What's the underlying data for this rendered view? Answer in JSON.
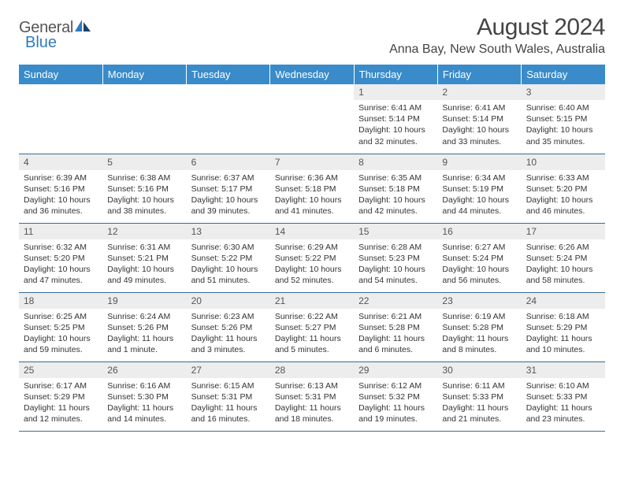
{
  "colors": {
    "header_bg": "#3a8bc9",
    "header_text": "#ffffff",
    "daynum_bg": "#ededed",
    "border": "#3a6c94",
    "logo_blue": "#2d7bc1",
    "text": "#333333"
  },
  "logo": {
    "line1a": "General",
    "line2": "Blue"
  },
  "title": "August 2024",
  "location": "Anna Bay, New South Wales, Australia",
  "day_headers": [
    "Sunday",
    "Monday",
    "Tuesday",
    "Wednesday",
    "Thursday",
    "Friday",
    "Saturday"
  ],
  "weeks": [
    [
      {
        "n": "",
        "sr": "",
        "ss": "",
        "dl": ""
      },
      {
        "n": "",
        "sr": "",
        "ss": "",
        "dl": ""
      },
      {
        "n": "",
        "sr": "",
        "ss": "",
        "dl": ""
      },
      {
        "n": "",
        "sr": "",
        "ss": "",
        "dl": ""
      },
      {
        "n": "1",
        "sr": "Sunrise: 6:41 AM",
        "ss": "Sunset: 5:14 PM",
        "dl": "Daylight: 10 hours and 32 minutes."
      },
      {
        "n": "2",
        "sr": "Sunrise: 6:41 AM",
        "ss": "Sunset: 5:14 PM",
        "dl": "Daylight: 10 hours and 33 minutes."
      },
      {
        "n": "3",
        "sr": "Sunrise: 6:40 AM",
        "ss": "Sunset: 5:15 PM",
        "dl": "Daylight: 10 hours and 35 minutes."
      }
    ],
    [
      {
        "n": "4",
        "sr": "Sunrise: 6:39 AM",
        "ss": "Sunset: 5:16 PM",
        "dl": "Daylight: 10 hours and 36 minutes."
      },
      {
        "n": "5",
        "sr": "Sunrise: 6:38 AM",
        "ss": "Sunset: 5:16 PM",
        "dl": "Daylight: 10 hours and 38 minutes."
      },
      {
        "n": "6",
        "sr": "Sunrise: 6:37 AM",
        "ss": "Sunset: 5:17 PM",
        "dl": "Daylight: 10 hours and 39 minutes."
      },
      {
        "n": "7",
        "sr": "Sunrise: 6:36 AM",
        "ss": "Sunset: 5:18 PM",
        "dl": "Daylight: 10 hours and 41 minutes."
      },
      {
        "n": "8",
        "sr": "Sunrise: 6:35 AM",
        "ss": "Sunset: 5:18 PM",
        "dl": "Daylight: 10 hours and 42 minutes."
      },
      {
        "n": "9",
        "sr": "Sunrise: 6:34 AM",
        "ss": "Sunset: 5:19 PM",
        "dl": "Daylight: 10 hours and 44 minutes."
      },
      {
        "n": "10",
        "sr": "Sunrise: 6:33 AM",
        "ss": "Sunset: 5:20 PM",
        "dl": "Daylight: 10 hours and 46 minutes."
      }
    ],
    [
      {
        "n": "11",
        "sr": "Sunrise: 6:32 AM",
        "ss": "Sunset: 5:20 PM",
        "dl": "Daylight: 10 hours and 47 minutes."
      },
      {
        "n": "12",
        "sr": "Sunrise: 6:31 AM",
        "ss": "Sunset: 5:21 PM",
        "dl": "Daylight: 10 hours and 49 minutes."
      },
      {
        "n": "13",
        "sr": "Sunrise: 6:30 AM",
        "ss": "Sunset: 5:22 PM",
        "dl": "Daylight: 10 hours and 51 minutes."
      },
      {
        "n": "14",
        "sr": "Sunrise: 6:29 AM",
        "ss": "Sunset: 5:22 PM",
        "dl": "Daylight: 10 hours and 52 minutes."
      },
      {
        "n": "15",
        "sr": "Sunrise: 6:28 AM",
        "ss": "Sunset: 5:23 PM",
        "dl": "Daylight: 10 hours and 54 minutes."
      },
      {
        "n": "16",
        "sr": "Sunrise: 6:27 AM",
        "ss": "Sunset: 5:24 PM",
        "dl": "Daylight: 10 hours and 56 minutes."
      },
      {
        "n": "17",
        "sr": "Sunrise: 6:26 AM",
        "ss": "Sunset: 5:24 PM",
        "dl": "Daylight: 10 hours and 58 minutes."
      }
    ],
    [
      {
        "n": "18",
        "sr": "Sunrise: 6:25 AM",
        "ss": "Sunset: 5:25 PM",
        "dl": "Daylight: 10 hours and 59 minutes."
      },
      {
        "n": "19",
        "sr": "Sunrise: 6:24 AM",
        "ss": "Sunset: 5:26 PM",
        "dl": "Daylight: 11 hours and 1 minute."
      },
      {
        "n": "20",
        "sr": "Sunrise: 6:23 AM",
        "ss": "Sunset: 5:26 PM",
        "dl": "Daylight: 11 hours and 3 minutes."
      },
      {
        "n": "21",
        "sr": "Sunrise: 6:22 AM",
        "ss": "Sunset: 5:27 PM",
        "dl": "Daylight: 11 hours and 5 minutes."
      },
      {
        "n": "22",
        "sr": "Sunrise: 6:21 AM",
        "ss": "Sunset: 5:28 PM",
        "dl": "Daylight: 11 hours and 6 minutes."
      },
      {
        "n": "23",
        "sr": "Sunrise: 6:19 AM",
        "ss": "Sunset: 5:28 PM",
        "dl": "Daylight: 11 hours and 8 minutes."
      },
      {
        "n": "24",
        "sr": "Sunrise: 6:18 AM",
        "ss": "Sunset: 5:29 PM",
        "dl": "Daylight: 11 hours and 10 minutes."
      }
    ],
    [
      {
        "n": "25",
        "sr": "Sunrise: 6:17 AM",
        "ss": "Sunset: 5:29 PM",
        "dl": "Daylight: 11 hours and 12 minutes."
      },
      {
        "n": "26",
        "sr": "Sunrise: 6:16 AM",
        "ss": "Sunset: 5:30 PM",
        "dl": "Daylight: 11 hours and 14 minutes."
      },
      {
        "n": "27",
        "sr": "Sunrise: 6:15 AM",
        "ss": "Sunset: 5:31 PM",
        "dl": "Daylight: 11 hours and 16 minutes."
      },
      {
        "n": "28",
        "sr": "Sunrise: 6:13 AM",
        "ss": "Sunset: 5:31 PM",
        "dl": "Daylight: 11 hours and 18 minutes."
      },
      {
        "n": "29",
        "sr": "Sunrise: 6:12 AM",
        "ss": "Sunset: 5:32 PM",
        "dl": "Daylight: 11 hours and 19 minutes."
      },
      {
        "n": "30",
        "sr": "Sunrise: 6:11 AM",
        "ss": "Sunset: 5:33 PM",
        "dl": "Daylight: 11 hours and 21 minutes."
      },
      {
        "n": "31",
        "sr": "Sunrise: 6:10 AM",
        "ss": "Sunset: 5:33 PM",
        "dl": "Daylight: 11 hours and 23 minutes."
      }
    ]
  ]
}
